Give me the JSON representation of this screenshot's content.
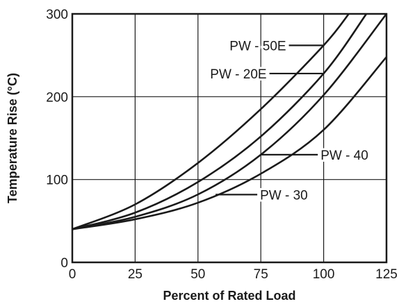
{
  "chart_data": {
    "type": "line",
    "title": "",
    "xlabel": "Percent of Rated Load",
    "ylabel": "Temperature Rise (°C)",
    "xlim": [
      0,
      125
    ],
    "ylim": [
      0,
      300
    ],
    "x_ticks": [
      "0",
      "25",
      "50",
      "75",
      "100",
      "125"
    ],
    "y_ticks": [
      "0",
      "100",
      "200",
      "300"
    ],
    "grid": true,
    "legend": "none",
    "series": [
      {
        "name": "PW - 50E",
        "x": [
          0,
          25,
          50,
          75,
          100,
          110
        ],
        "y": [
          40,
          70,
          120,
          185,
          262,
          300
        ]
      },
      {
        "name": "PW - 20E",
        "x": [
          0,
          25,
          50,
          75,
          100,
          117
        ],
        "y": [
          40,
          60,
          97,
          152,
          228,
          300
        ]
      },
      {
        "name": "PW - 40",
        "x": [
          0,
          25,
          50,
          75,
          100,
          125
        ],
        "y": [
          40,
          55,
          82,
          130,
          202,
          300
        ]
      },
      {
        "name": "PW - 30",
        "x": [
          0,
          25,
          50,
          75,
          100,
          125
        ],
        "y": [
          40,
          52,
          72,
          107,
          160,
          248
        ]
      }
    ],
    "annotations": [
      {
        "series": 0,
        "text": "PW - 50E",
        "anchor_x": 100
      },
      {
        "series": 1,
        "text": "PW - 20E",
        "anchor_x": 100
      },
      {
        "series": 2,
        "text": "PW - 40",
        "anchor_x": 75
      },
      {
        "series": 3,
        "text": "PW - 30",
        "anchor_x": 57
      }
    ],
    "line_color": "#1a1a1a",
    "grid_color": "#1a1a1a"
  }
}
